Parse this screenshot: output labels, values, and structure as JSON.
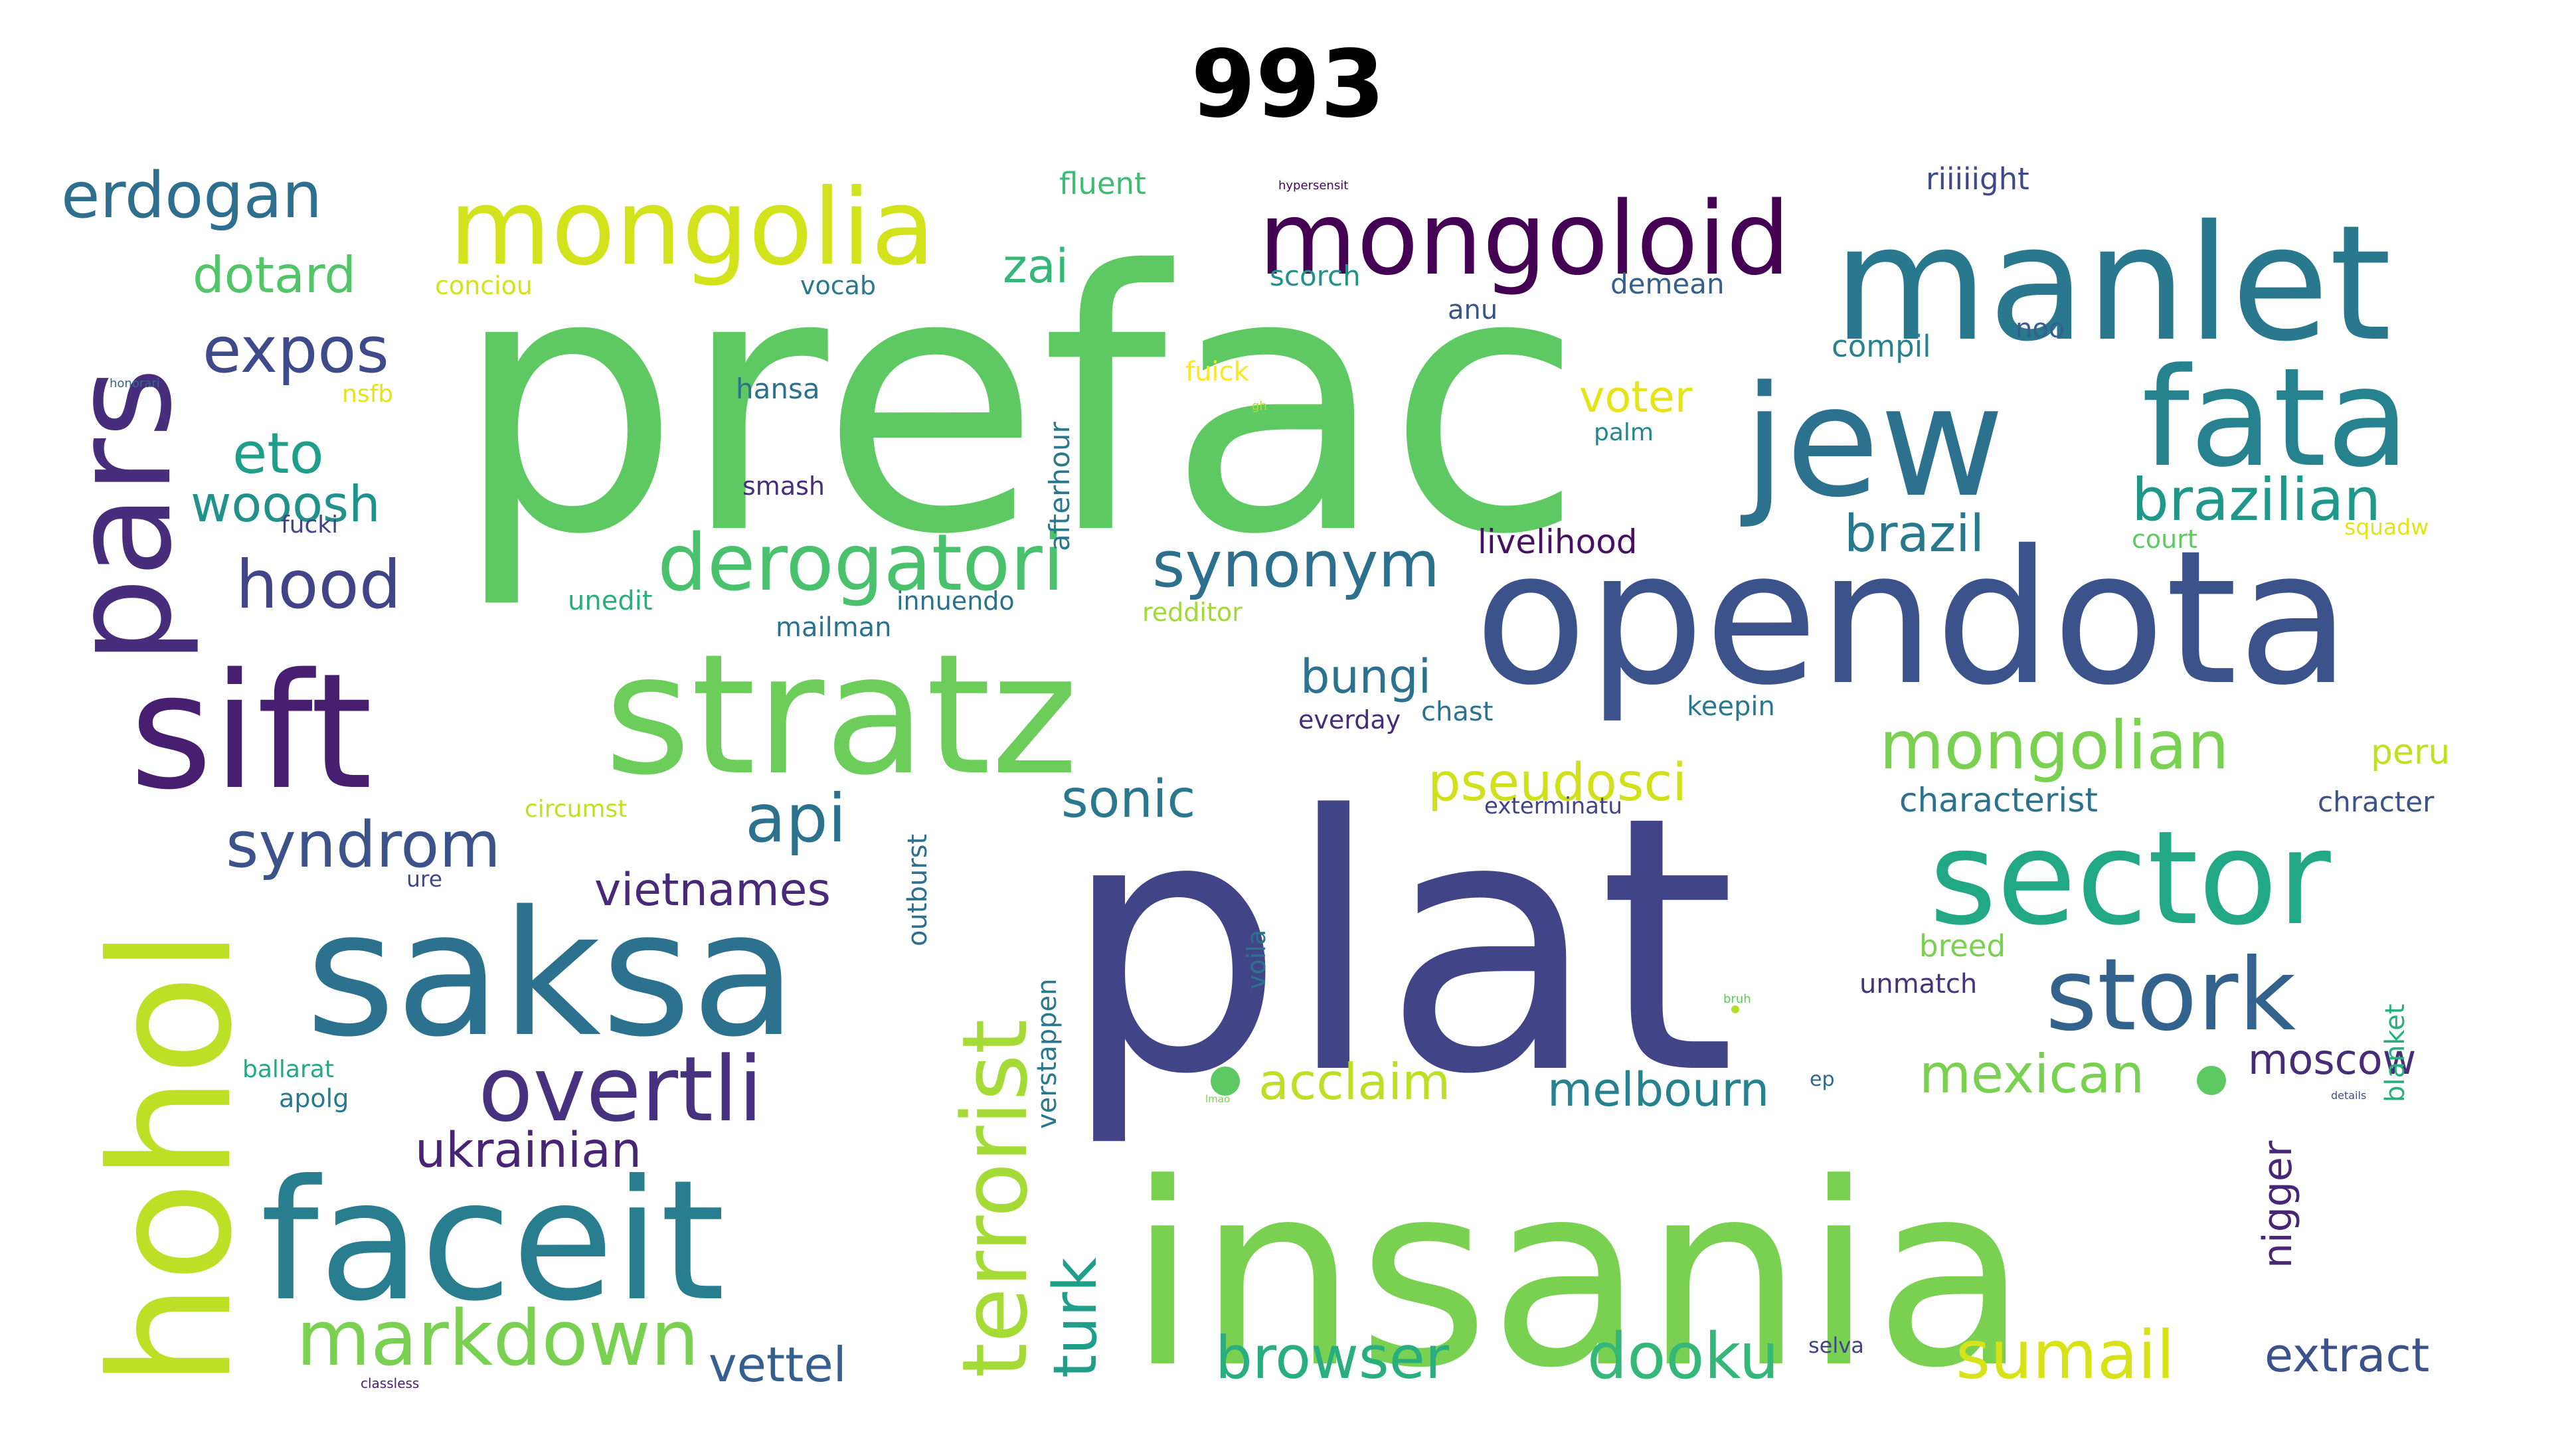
{
  "title": "993",
  "words": [
    {
      "text": "prefac",
      "color": "#5ec962"
    },
    {
      "text": "plat",
      "color": "#414487"
    },
    {
      "text": "insania",
      "color": "#7ad151"
    },
    {
      "text": "opendota",
      "color": "#3b528b"
    },
    {
      "text": "stratz",
      "color": "#6ccd5a"
    },
    {
      "text": "sift",
      "color": "#481f70"
    },
    {
      "text": "saksa",
      "color": "#2c728e"
    },
    {
      "text": "manlet",
      "color": "#2a788e"
    },
    {
      "text": "jew",
      "color": "#2c718e"
    },
    {
      "text": "fata",
      "color": "#26828e"
    },
    {
      "text": "faceit",
      "color": "#287d8e"
    },
    {
      "text": "hohol",
      "color": "#bddf26"
    },
    {
      "text": "pars",
      "color": "#472d7b"
    },
    {
      "text": "sector",
      "color": "#22a884"
    },
    {
      "text": "mongolia",
      "color": "#d2e21b"
    },
    {
      "text": "mongoloid",
      "color": "#440154"
    },
    {
      "text": "stork",
      "color": "#33638d"
    },
    {
      "text": "terrorist",
      "color": "#a5db36"
    },
    {
      "text": "overtli",
      "color": "#46327e"
    },
    {
      "text": "derogatori",
      "color": "#4ac16d"
    },
    {
      "text": "mongolian",
      "color": "#7ad151"
    },
    {
      "text": "markdown",
      "color": "#7ad151"
    },
    {
      "text": "synonym",
      "color": "#2d708e"
    },
    {
      "text": "brazilian",
      "color": "#1f988b"
    },
    {
      "text": "sumail",
      "color": "#d8e219"
    },
    {
      "text": "hood",
      "color": "#414487"
    },
    {
      "text": "erdogan",
      "color": "#2e6e8e"
    },
    {
      "text": "api",
      "color": "#2c728e"
    },
    {
      "text": "syndrom",
      "color": "#3b528b"
    },
    {
      "text": "expos",
      "color": "#3e4a89"
    },
    {
      "text": "dooku",
      "color": "#35b779"
    },
    {
      "text": "browser",
      "color": "#29af7f"
    },
    {
      "text": "brazil",
      "color": "#2a788e"
    },
    {
      "text": "eto",
      "color": "#1f9e89"
    },
    {
      "text": "dotard",
      "color": "#52c569"
    },
    {
      "text": "wooosh",
      "color": "#21918c"
    },
    {
      "text": "turk",
      "color": "#1f9e89"
    },
    {
      "text": "vietnames",
      "color": "#482878"
    },
    {
      "text": "ukrainian",
      "color": "#482475"
    },
    {
      "text": "sonic",
      "color": "#2a788e"
    },
    {
      "text": "pseudosci",
      "color": "#d0e11c"
    },
    {
      "text": "mexican",
      "color": "#7ad151"
    },
    {
      "text": "melbourn",
      "color": "#26828e"
    },
    {
      "text": "extract",
      "color": "#3b528b"
    },
    {
      "text": "vettel",
      "color": "#355f8d"
    },
    {
      "text": "acclaim",
      "color": "#bddf26"
    },
    {
      "text": "moscow",
      "color": "#472c7a"
    },
    {
      "text": "nigger",
      "color": "#482677"
    },
    {
      "text": "bungi",
      "color": "#2c728e"
    },
    {
      "text": "zai",
      "color": "#35b779"
    },
    {
      "text": "voter",
      "color": "#e5e419"
    },
    {
      "text": "characterist",
      "color": "#2c728e"
    },
    {
      "text": "livelihood",
      "color": "#471063"
    },
    {
      "text": "chracter",
      "color": "#3b528b"
    },
    {
      "text": "peru",
      "color": "#c2df23"
    },
    {
      "text": "outburst",
      "color": "#2e6e8e"
    },
    {
      "text": "afterhour",
      "color": "#2a788e"
    },
    {
      "text": "verstappen",
      "color": "#2a788e"
    },
    {
      "text": "blanket",
      "color": "#29af7f"
    },
    {
      "text": "voila",
      "color": "#2c728e"
    },
    {
      "text": "conciou",
      "color": "#d2e21b"
    },
    {
      "text": "vocab",
      "color": "#2a788e"
    },
    {
      "text": "scorch",
      "color": "#21918c"
    },
    {
      "text": "demean",
      "color": "#355f8d"
    },
    {
      "text": "fluent",
      "color": "#3ebc74"
    },
    {
      "text": "riiiiight",
      "color": "#3e4989"
    },
    {
      "text": "compil",
      "color": "#26828e"
    },
    {
      "text": "noo",
      "color": "#355f8d"
    },
    {
      "text": "anu",
      "color": "#39568c"
    },
    {
      "text": "hansa",
      "color": "#2c728e"
    },
    {
      "text": "nsfb",
      "color": "#e5e419"
    },
    {
      "text": "fuick",
      "color": "#fde725"
    },
    {
      "text": "smash",
      "color": "#472d7b"
    },
    {
      "text": "fucki",
      "color": "#414487"
    },
    {
      "text": "palm",
      "color": "#25858e"
    },
    {
      "text": "court",
      "color": "#5ec962"
    },
    {
      "text": "squadw",
      "color": "#e2e418"
    },
    {
      "text": "unedit",
      "color": "#29af7f"
    },
    {
      "text": "mailman",
      "color": "#2c728e"
    },
    {
      "text": "innuendo",
      "color": "#2d708e"
    },
    {
      "text": "redditor",
      "color": "#a0da39"
    },
    {
      "text": "everday",
      "color": "#472c7a"
    },
    {
      "text": "chast",
      "color": "#2c728e"
    },
    {
      "text": "keepin",
      "color": "#2a788e"
    },
    {
      "text": "circumst",
      "color": "#c2df23"
    },
    {
      "text": "exterminatu",
      "color": "#414487"
    },
    {
      "text": "ure",
      "color": "#3e4989"
    },
    {
      "text": "breed",
      "color": "#7ad151"
    },
    {
      "text": "unmatch",
      "color": "#46337e"
    },
    {
      "text": "ballarat",
      "color": "#22a884"
    },
    {
      "text": "apolg",
      "color": "#2a788e"
    },
    {
      "text": "ep",
      "color": "#31688e"
    },
    {
      "text": "selva",
      "color": "#414487"
    },
    {
      "text": "classless",
      "color": "#481f70"
    },
    {
      "text": "hypersensit",
      "color": "#450559"
    },
    {
      "text": "honorari",
      "color": "#31688e"
    },
    {
      "text": "gh",
      "color": "#b5de2b"
    },
    {
      "text": "lmao",
      "color": "#7ad151"
    },
    {
      "text": "details",
      "color": "#3b528b"
    },
    {
      "text": "bruh",
      "color": "#5ec962"
    }
  ]
}
